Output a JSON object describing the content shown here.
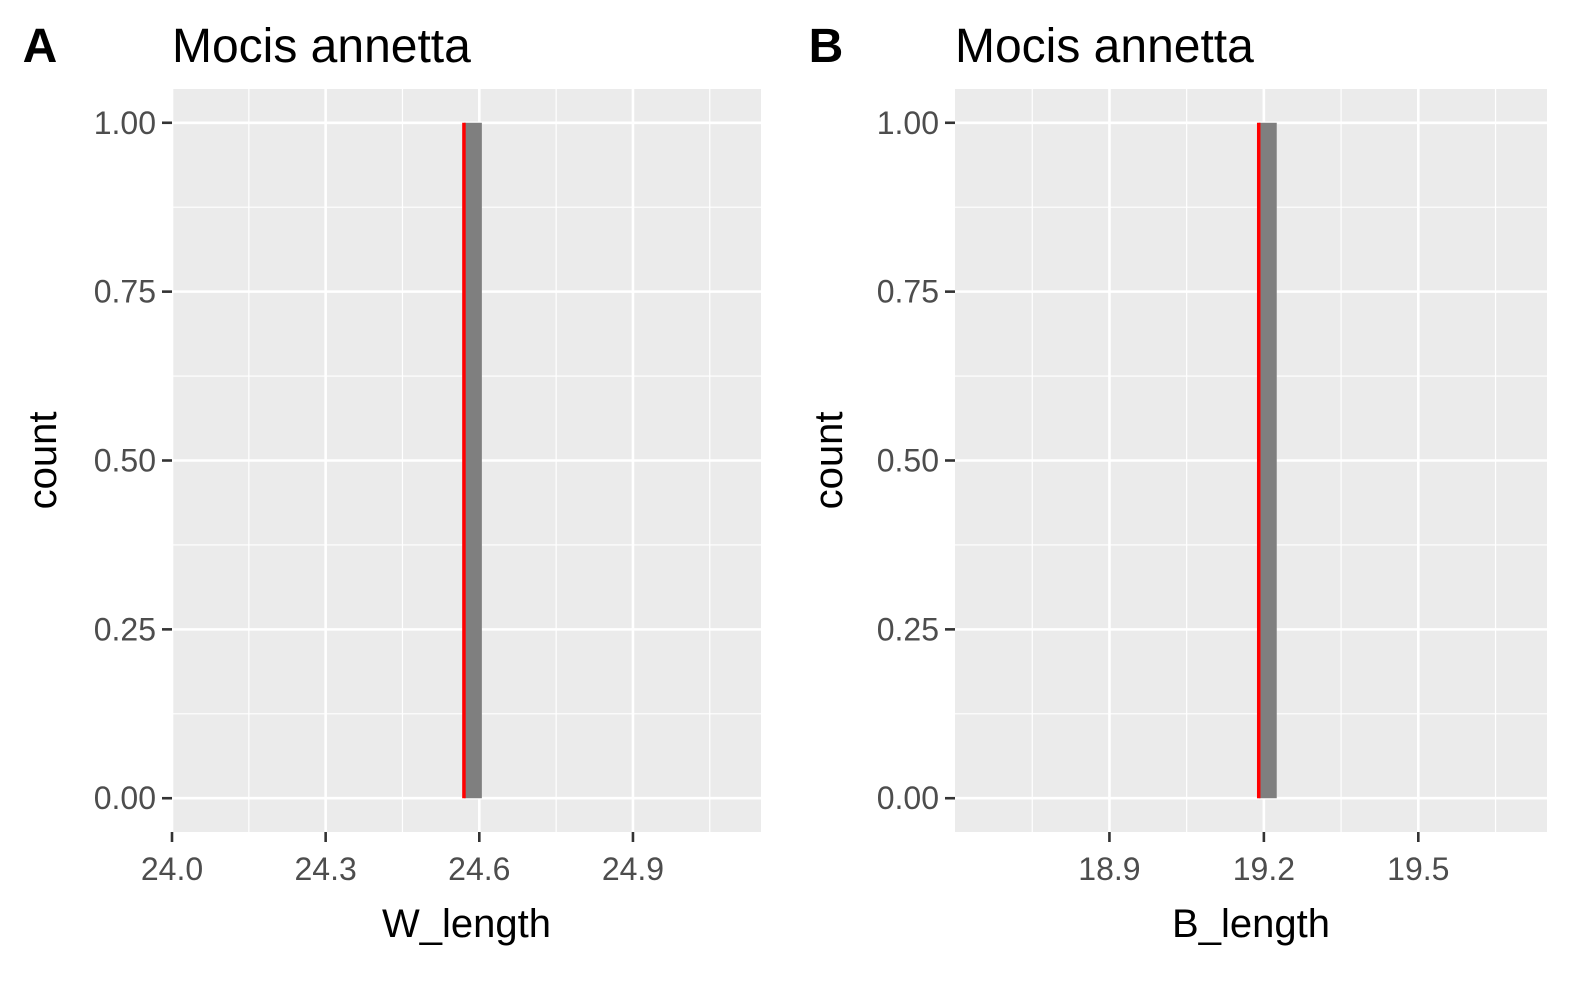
{
  "colors": {
    "panel_background": "#ebebeb",
    "grid": "#ffffff",
    "bar_fill": "#7f7f7f",
    "reference_line": "#ff0000",
    "tick_label": "#4d4d4d",
    "tick_mark": "#333333",
    "text": "#000000"
  },
  "chart_data": [
    {
      "type": "bar",
      "panel_tag": "A",
      "title": "Mocis annetta",
      "xlabel": "W_length",
      "ylabel": "count",
      "xlim": [
        24.0,
        25.15
      ],
      "ylim": [
        -0.05,
        1.05
      ],
      "x_ticks": [
        24.0,
        24.3,
        24.6,
        24.9
      ],
      "x_tick_labels": [
        "24.0",
        "24.3",
        "24.6",
        "24.9"
      ],
      "y_ticks": [
        0,
        0.25,
        0.5,
        0.75,
        1.0
      ],
      "y_tick_labels": [
        "0.00",
        "0.25",
        "0.50",
        "0.75",
        "1.00"
      ],
      "grid": true,
      "bars": [
        {
          "x_start": 24.57,
          "x_end": 24.605,
          "count": 1
        }
      ],
      "reference_line_x": 24.57
    },
    {
      "type": "bar",
      "panel_tag": "B",
      "title": "Mocis annetta",
      "xlabel": "B_length",
      "ylabel": "count",
      "xlim": [
        18.6,
        19.75
      ],
      "ylim": [
        -0.05,
        1.05
      ],
      "x_ticks": [
        18.9,
        19.2,
        19.5
      ],
      "x_tick_labels": [
        "18.9",
        "19.2",
        "19.5"
      ],
      "y_ticks": [
        0,
        0.25,
        0.5,
        0.75,
        1.0
      ],
      "y_tick_labels": [
        "0.00",
        "0.25",
        "0.50",
        "0.75",
        "1.00"
      ],
      "grid": true,
      "bars": [
        {
          "x_start": 19.19,
          "x_end": 19.225,
          "count": 1
        }
      ],
      "reference_line_x": 19.19
    }
  ]
}
